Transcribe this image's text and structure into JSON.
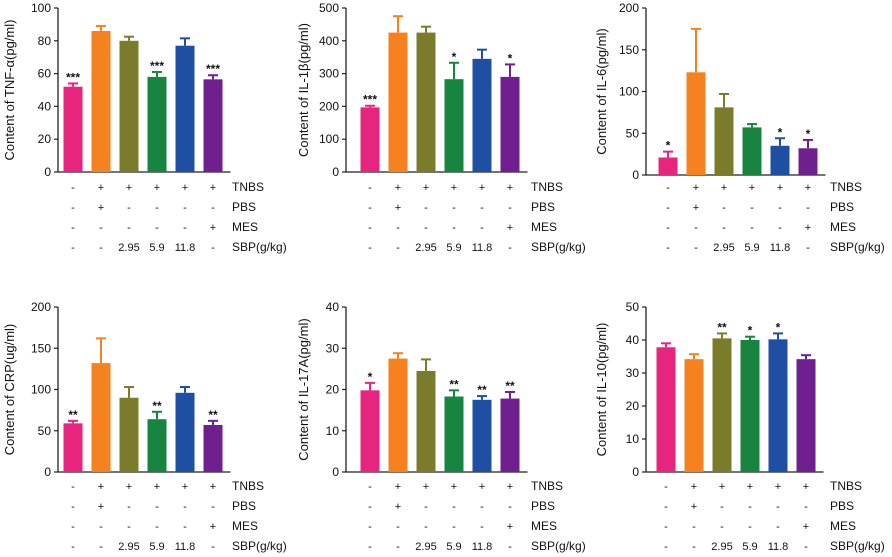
{
  "colors": [
    "#e8257e",
    "#f5821f",
    "#7b7b2c",
    "#17853f",
    "#1f4fa3",
    "#6f1f8e"
  ],
  "treatment_table": {
    "rows": [
      {
        "label": "TNBS",
        "values": [
          "-",
          "+",
          "+",
          "+",
          "+",
          "+"
        ]
      },
      {
        "label": "PBS",
        "values": [
          "-",
          "+",
          "-",
          "-",
          "-",
          "-"
        ]
      },
      {
        "label": "MES",
        "values": [
          "-",
          "-",
          "-",
          "-",
          "-",
          "+"
        ]
      },
      {
        "label": "SBP(g/kg)",
        "values": [
          "-",
          "-",
          "2.95",
          "5.9",
          "11.8",
          "-"
        ]
      }
    ]
  },
  "chart_data": [
    {
      "type": "bar",
      "ylabel": "Content of TNF-α(pg/ml)",
      "ylim": [
        0,
        100
      ],
      "yticks": [
        0,
        20,
        40,
        60,
        80,
        100
      ],
      "values": [
        52,
        86,
        80,
        58,
        77,
        56.5
      ],
      "errors": [
        2,
        3,
        2.5,
        3,
        4.5,
        2.5
      ],
      "significance": [
        "***",
        "",
        "",
        "***",
        "",
        "***"
      ]
    },
    {
      "type": "bar",
      "ylabel": "Content of IL-1β(pg/ml)",
      "ylim": [
        0,
        500
      ],
      "yticks": [
        0,
        100,
        200,
        300,
        400,
        500
      ],
      "values": [
        197,
        425,
        425,
        283,
        345,
        290
      ],
      "errors": [
        5,
        50,
        18,
        50,
        28,
        38
      ],
      "significance": [
        "***",
        "",
        "",
        "*",
        "",
        "*"
      ]
    },
    {
      "type": "bar",
      "ylabel": "Content of IL-6(pg/ml)",
      "ylim": [
        0,
        200
      ],
      "yticks": [
        0,
        50,
        100,
        150,
        200
      ],
      "values": [
        21,
        123,
        81,
        57,
        35,
        32
      ],
      "errors": [
        7,
        52,
        16,
        4,
        9,
        10
      ],
      "significance": [
        "*",
        "",
        "",
        "",
        "*",
        "*"
      ]
    },
    {
      "type": "bar",
      "ylabel": "Content of CRP(ug/ml)",
      "ylim": [
        0,
        200
      ],
      "yticks": [
        0,
        50,
        100,
        150,
        200
      ],
      "values": [
        59,
        132,
        90,
        64,
        96,
        57
      ],
      "errors": [
        3,
        30,
        13,
        9,
        7,
        5
      ],
      "significance": [
        "**",
        "",
        "",
        "**",
        "",
        "**"
      ]
    },
    {
      "type": "bar",
      "ylabel": "Content of IL-17A(pg/ml)",
      "ylim": [
        0,
        40
      ],
      "yticks": [
        0,
        10,
        20,
        30,
        40
      ],
      "values": [
        19.8,
        27.5,
        24.5,
        18.3,
        17.5,
        17.8
      ],
      "errors": [
        1.8,
        1.3,
        2.8,
        1.5,
        0.9,
        1.6
      ],
      "significance": [
        "*",
        "",
        "",
        "**",
        "**",
        "**"
      ]
    },
    {
      "type": "bar",
      "ylabel": "Content of IL-10(pg/ml)",
      "ylim": [
        0,
        50
      ],
      "yticks": [
        0,
        10,
        20,
        30,
        40,
        50
      ],
      "values": [
        37.8,
        34.2,
        40.5,
        40,
        40.2,
        34.2
      ],
      "errors": [
        1.2,
        1.5,
        1.5,
        1.0,
        1.8,
        1.2
      ],
      "significance": [
        "",
        "",
        "**",
        "*",
        "*",
        ""
      ]
    }
  ]
}
